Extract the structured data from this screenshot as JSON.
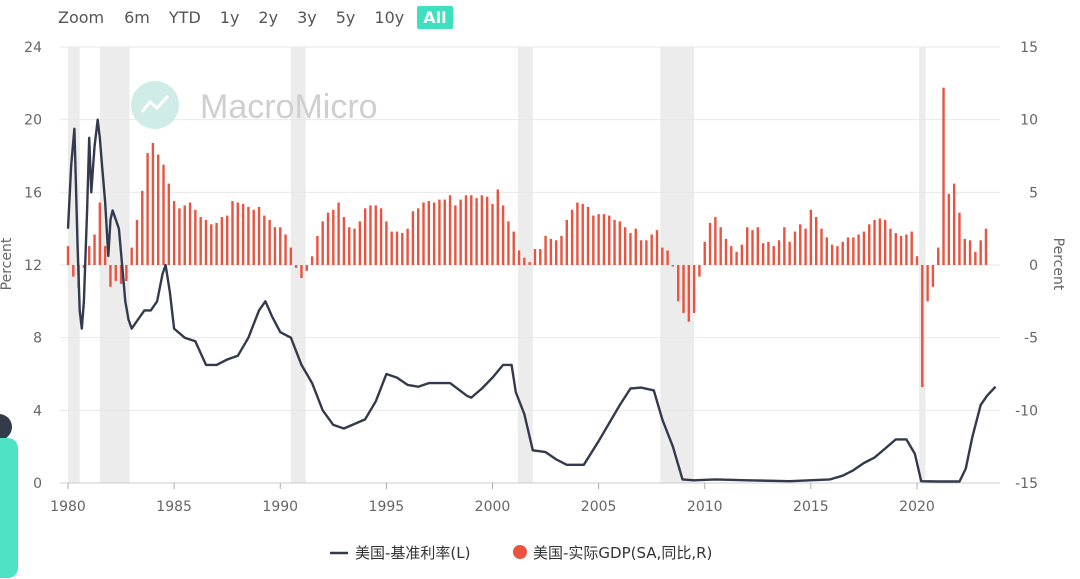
{
  "zoom": {
    "label": "Zoom",
    "buttons": [
      "6m",
      "YTD",
      "1y",
      "2y",
      "3y",
      "5y",
      "10y",
      "All"
    ],
    "active": "All",
    "active_color": "#3fe0c0"
  },
  "watermark": {
    "text": "MacroMicro",
    "icon": "macromicro-logo-icon"
  },
  "chart_data": {
    "type": "line+bar",
    "title": "",
    "left_axis": {
      "label": "Percent",
      "min": 0,
      "max": 24,
      "ticks": [
        0,
        4,
        8,
        12,
        16,
        20,
        24
      ]
    },
    "right_axis": {
      "label": "Percent",
      "min": -15,
      "max": 15,
      "ticks": [
        -15,
        -10,
        -5,
        0,
        5,
        10,
        15
      ]
    },
    "x_axis": {
      "min": 1980,
      "max": 2023.8,
      "ticks": [
        1980,
        1985,
        1990,
        1995,
        2000,
        2005,
        2010,
        2015,
        2020
      ]
    },
    "recessions": [
      [
        1980.0,
        1980.55
      ],
      [
        1981.5,
        1982.9
      ],
      [
        1990.5,
        1991.2
      ],
      [
        2001.2,
        2001.9
      ],
      [
        2007.9,
        2009.5
      ],
      [
        2020.1,
        2020.4
      ]
    ],
    "legend": [
      {
        "name": "美国-基准利率(L)",
        "marker": "line",
        "color": "#343a4e"
      },
      {
        "name": "美国-实际GDP(SA,同比,R)",
        "marker": "circle",
        "color": "#e9533f"
      }
    ],
    "series": [
      {
        "name": "美国-基准利率(L)",
        "type": "line",
        "axis": "left",
        "color": "#343a4e",
        "points": [
          [
            1980.0,
            14.0
          ],
          [
            1980.15,
            17.5
          ],
          [
            1980.3,
            19.5
          ],
          [
            1980.45,
            13.0
          ],
          [
            1980.55,
            9.5
          ],
          [
            1980.65,
            8.5
          ],
          [
            1980.75,
            10.0
          ],
          [
            1980.9,
            15.0
          ],
          [
            1981.0,
            19.0
          ],
          [
            1981.1,
            16.0
          ],
          [
            1981.25,
            18.5
          ],
          [
            1981.4,
            20.0
          ],
          [
            1981.5,
            19.0
          ],
          [
            1981.6,
            17.5
          ],
          [
            1981.75,
            15.5
          ],
          [
            1981.9,
            12.5
          ],
          [
            1982.0,
            14.5
          ],
          [
            1982.1,
            15.0
          ],
          [
            1982.25,
            14.5
          ],
          [
            1982.4,
            14.0
          ],
          [
            1982.55,
            12.0
          ],
          [
            1982.7,
            10.0
          ],
          [
            1982.85,
            9.0
          ],
          [
            1983.0,
            8.5
          ],
          [
            1983.3,
            9.0
          ],
          [
            1983.6,
            9.5
          ],
          [
            1983.9,
            9.5
          ],
          [
            1984.2,
            10.0
          ],
          [
            1984.45,
            11.5
          ],
          [
            1984.6,
            12.0
          ],
          [
            1984.8,
            10.5
          ],
          [
            1985.0,
            8.5
          ],
          [
            1985.5,
            8.0
          ],
          [
            1986.0,
            7.8
          ],
          [
            1986.5,
            6.5
          ],
          [
            1987.0,
            6.5
          ],
          [
            1987.5,
            6.8
          ],
          [
            1988.0,
            7.0
          ],
          [
            1988.5,
            8.0
          ],
          [
            1989.0,
            9.5
          ],
          [
            1989.3,
            10.0
          ],
          [
            1989.6,
            9.2
          ],
          [
            1990.0,
            8.3
          ],
          [
            1990.5,
            8.0
          ],
          [
            1991.0,
            6.5
          ],
          [
            1991.5,
            5.5
          ],
          [
            1992.0,
            4.0
          ],
          [
            1992.5,
            3.2
          ],
          [
            1993.0,
            3.0
          ],
          [
            1994.0,
            3.5
          ],
          [
            1994.5,
            4.5
          ],
          [
            1995.0,
            6.0
          ],
          [
            1995.5,
            5.8
          ],
          [
            1996.0,
            5.4
          ],
          [
            1996.5,
            5.3
          ],
          [
            1997.0,
            5.5
          ],
          [
            1998.0,
            5.5
          ],
          [
            1998.8,
            4.8
          ],
          [
            1999.0,
            4.7
          ],
          [
            1999.5,
            5.2
          ],
          [
            2000.0,
            5.8
          ],
          [
            2000.5,
            6.5
          ],
          [
            2000.9,
            6.5
          ],
          [
            2001.1,
            5.0
          ],
          [
            2001.5,
            3.8
          ],
          [
            2001.9,
            1.8
          ],
          [
            2002.5,
            1.7
          ],
          [
            2003.0,
            1.3
          ],
          [
            2003.5,
            1.0
          ],
          [
            2004.3,
            1.0
          ],
          [
            2005.0,
            2.3
          ],
          [
            2005.5,
            3.3
          ],
          [
            2006.0,
            4.3
          ],
          [
            2006.5,
            5.2
          ],
          [
            2007.0,
            5.25
          ],
          [
            2007.6,
            5.1
          ],
          [
            2008.0,
            3.5
          ],
          [
            2008.5,
            2.0
          ],
          [
            2008.95,
            0.2
          ],
          [
            2009.5,
            0.15
          ],
          [
            2010.5,
            0.2
          ],
          [
            2012.0,
            0.15
          ],
          [
            2014.0,
            0.1
          ],
          [
            2015.9,
            0.2
          ],
          [
            2016.5,
            0.4
          ],
          [
            2017.0,
            0.7
          ],
          [
            2017.5,
            1.1
          ],
          [
            2018.0,
            1.4
          ],
          [
            2018.5,
            1.9
          ],
          [
            2019.0,
            2.4
          ],
          [
            2019.5,
            2.4
          ],
          [
            2019.9,
            1.6
          ],
          [
            2020.2,
            0.1
          ],
          [
            2021.0,
            0.08
          ],
          [
            2022.0,
            0.08
          ],
          [
            2022.3,
            0.8
          ],
          [
            2022.6,
            2.5
          ],
          [
            2023.0,
            4.3
          ],
          [
            2023.3,
            4.8
          ],
          [
            2023.7,
            5.3
          ]
        ]
      },
      {
        "name": "美国-实际GDP(SA,同比,R)",
        "type": "bar",
        "axis": "right",
        "color": "#e9533f",
        "points": [
          [
            1980.0,
            1.3
          ],
          [
            1980.25,
            -0.8
          ],
          [
            1980.5,
            -1.6
          ],
          [
            1980.75,
            -0.2
          ],
          [
            1981.0,
            1.3
          ],
          [
            1981.25,
            2.1
          ],
          [
            1981.5,
            4.3
          ],
          [
            1981.75,
            1.3
          ],
          [
            1982.0,
            -1.5
          ],
          [
            1982.25,
            -1.1
          ],
          [
            1982.5,
            -1.3
          ],
          [
            1982.75,
            -1.1
          ],
          [
            1983.0,
            1.2
          ],
          [
            1983.25,
            3.1
          ],
          [
            1983.5,
            5.1
          ],
          [
            1983.75,
            7.7
          ],
          [
            1984.0,
            8.4
          ],
          [
            1984.25,
            7.6
          ],
          [
            1984.5,
            6.9
          ],
          [
            1984.75,
            5.6
          ],
          [
            1985.0,
            4.4
          ],
          [
            1985.25,
            3.9
          ],
          [
            1985.5,
            4.1
          ],
          [
            1985.75,
            4.3
          ],
          [
            1986.0,
            3.8
          ],
          [
            1986.25,
            3.3
          ],
          [
            1986.5,
            3.1
          ],
          [
            1986.75,
            2.8
          ],
          [
            1987.0,
            2.9
          ],
          [
            1987.25,
            3.3
          ],
          [
            1987.5,
            3.4
          ],
          [
            1987.75,
            4.4
          ],
          [
            1988.0,
            4.3
          ],
          [
            1988.25,
            4.2
          ],
          [
            1988.5,
            4.0
          ],
          [
            1988.75,
            3.8
          ],
          [
            1989.0,
            4.0
          ],
          [
            1989.25,
            3.4
          ],
          [
            1989.5,
            3.1
          ],
          [
            1989.75,
            2.6
          ],
          [
            1990.0,
            2.6
          ],
          [
            1990.25,
            2.1
          ],
          [
            1990.5,
            1.2
          ],
          [
            1990.75,
            -0.2
          ],
          [
            1991.0,
            -0.9
          ],
          [
            1991.25,
            -0.4
          ],
          [
            1991.5,
            0.6
          ],
          [
            1991.75,
            2.0
          ],
          [
            1992.0,
            3.0
          ],
          [
            1992.25,
            3.6
          ],
          [
            1992.5,
            3.8
          ],
          [
            1992.75,
            4.3
          ],
          [
            1993.0,
            3.3
          ],
          [
            1993.25,
            2.6
          ],
          [
            1993.5,
            2.5
          ],
          [
            1993.75,
            3.0
          ],
          [
            1994.0,
            3.9
          ],
          [
            1994.25,
            4.1
          ],
          [
            1994.5,
            4.1
          ],
          [
            1994.75,
            3.9
          ],
          [
            1995.0,
            3.0
          ],
          [
            1995.25,
            2.3
          ],
          [
            1995.5,
            2.3
          ],
          [
            1995.75,
            2.2
          ],
          [
            1996.0,
            2.5
          ],
          [
            1996.25,
            3.7
          ],
          [
            1996.5,
            3.9
          ],
          [
            1996.75,
            4.3
          ],
          [
            1997.0,
            4.4
          ],
          [
            1997.25,
            4.3
          ],
          [
            1997.5,
            4.5
          ],
          [
            1997.75,
            4.5
          ],
          [
            1998.0,
            4.8
          ],
          [
            1998.25,
            4.1
          ],
          [
            1998.5,
            4.5
          ],
          [
            1998.75,
            4.8
          ],
          [
            1999.0,
            4.8
          ],
          [
            1999.25,
            4.6
          ],
          [
            1999.5,
            4.8
          ],
          [
            1999.75,
            4.7
          ],
          [
            2000.0,
            4.2
          ],
          [
            2000.25,
            5.2
          ],
          [
            2000.5,
            4.1
          ],
          [
            2000.75,
            3.0
          ],
          [
            2001.0,
            2.3
          ],
          [
            2001.25,
            1.0
          ],
          [
            2001.5,
            0.5
          ],
          [
            2001.75,
            0.2
          ],
          [
            2002.0,
            1.1
          ],
          [
            2002.25,
            1.1
          ],
          [
            2002.5,
            2.0
          ],
          [
            2002.75,
            1.8
          ],
          [
            2003.0,
            1.7
          ],
          [
            2003.25,
            2.0
          ],
          [
            2003.5,
            3.1
          ],
          [
            2003.75,
            3.8
          ],
          [
            2004.0,
            4.3
          ],
          [
            2004.25,
            4.2
          ],
          [
            2004.5,
            4.0
          ],
          [
            2004.75,
            3.4
          ],
          [
            2005.0,
            3.5
          ],
          [
            2005.25,
            3.5
          ],
          [
            2005.5,
            3.4
          ],
          [
            2005.75,
            3.1
          ],
          [
            2006.0,
            3.0
          ],
          [
            2006.25,
            2.6
          ],
          [
            2006.5,
            2.2
          ],
          [
            2006.75,
            2.5
          ],
          [
            2007.0,
            1.7
          ],
          [
            2007.25,
            1.7
          ],
          [
            2007.5,
            2.1
          ],
          [
            2007.75,
            2.4
          ],
          [
            2008.0,
            1.2
          ],
          [
            2008.25,
            1.0
          ],
          [
            2008.5,
            -0.1
          ],
          [
            2008.75,
            -2.5
          ],
          [
            2009.0,
            -3.3
          ],
          [
            2009.25,
            -3.9
          ],
          [
            2009.5,
            -3.3
          ],
          [
            2009.75,
            -0.8
          ],
          [
            2010.0,
            1.6
          ],
          [
            2010.25,
            2.9
          ],
          [
            2010.5,
            3.3
          ],
          [
            2010.75,
            2.6
          ],
          [
            2011.0,
            1.8
          ],
          [
            2011.25,
            1.3
          ],
          [
            2011.5,
            0.9
          ],
          [
            2011.75,
            1.4
          ],
          [
            2012.0,
            2.6
          ],
          [
            2012.25,
            2.4
          ],
          [
            2012.5,
            2.6
          ],
          [
            2012.75,
            1.5
          ],
          [
            2013.0,
            1.6
          ],
          [
            2013.25,
            1.3
          ],
          [
            2013.5,
            1.7
          ],
          [
            2013.75,
            2.6
          ],
          [
            2014.0,
            1.6
          ],
          [
            2014.25,
            2.3
          ],
          [
            2014.5,
            2.8
          ],
          [
            2014.75,
            2.5
          ],
          [
            2015.0,
            3.8
          ],
          [
            2015.25,
            3.3
          ],
          [
            2015.5,
            2.5
          ],
          [
            2015.75,
            1.9
          ],
          [
            2016.0,
            1.4
          ],
          [
            2016.25,
            1.3
          ],
          [
            2016.5,
            1.6
          ],
          [
            2016.75,
            1.9
          ],
          [
            2017.0,
            1.9
          ],
          [
            2017.25,
            2.1
          ],
          [
            2017.5,
            2.3
          ],
          [
            2017.75,
            2.8
          ],
          [
            2018.0,
            3.1
          ],
          [
            2018.25,
            3.2
          ],
          [
            2018.5,
            3.1
          ],
          [
            2018.75,
            2.5
          ],
          [
            2019.0,
            2.2
          ],
          [
            2019.25,
            2.0
          ],
          [
            2019.5,
            2.1
          ],
          [
            2019.75,
            2.3
          ],
          [
            2020.0,
            0.6
          ],
          [
            2020.25,
            -8.4
          ],
          [
            2020.5,
            -2.5
          ],
          [
            2020.75,
            -1.5
          ],
          [
            2021.0,
            1.2
          ],
          [
            2021.25,
            12.2
          ],
          [
            2021.5,
            4.9
          ],
          [
            2021.75,
            5.6
          ],
          [
            2022.0,
            3.6
          ],
          [
            2022.25,
            1.8
          ],
          [
            2022.5,
            1.7
          ],
          [
            2022.75,
            0.9
          ],
          [
            2023.0,
            1.7
          ],
          [
            2023.25,
            2.5
          ]
        ]
      }
    ]
  }
}
